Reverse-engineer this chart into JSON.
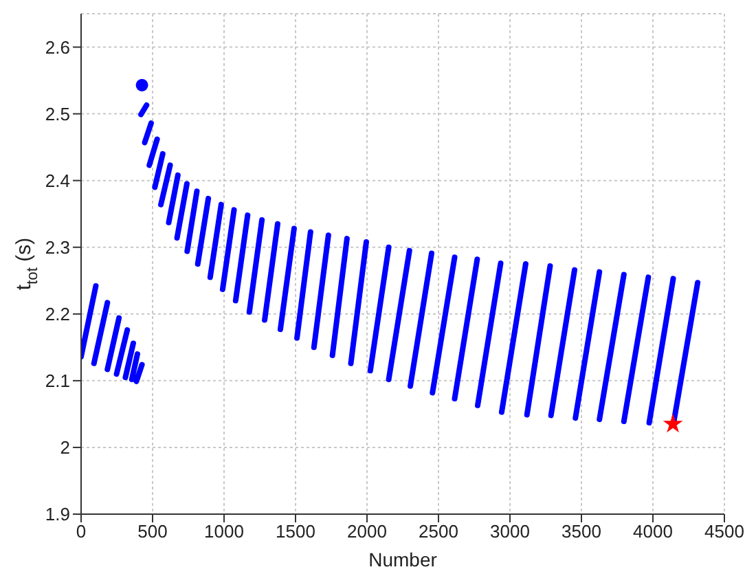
{
  "chart_data": {
    "type": "line",
    "xlabel": "Number",
    "ylabel": "t$_{tot}$ (s)",
    "xlim": [
      0,
      4500
    ],
    "xticks": [
      0,
      500,
      1000,
      1500,
      2000,
      2500,
      3000,
      3500,
      4000,
      4500
    ],
    "ylim": [
      1.9,
      2.65
    ],
    "yticks": [
      1.9,
      2,
      2.1,
      2.2,
      2.3,
      2.4,
      2.5,
      2.6
    ],
    "grid": true,
    "marker": "none",
    "line_style": "solid",
    "series": [
      {
        "color": "#0000ff",
        "x": [
          0,
          103,
          null,
          90,
          184,
          null,
          184,
          265,
          null,
          248,
          323,
          null,
          310,
          365,
          null,
          355,
          394,
          null,
          387,
          426,
          null,
          419,
          458,
          null,
          445,
          490,
          null,
          477,
          532,
          null,
          516,
          571,
          null,
          558,
          623,
          null,
          613,
          677,
          null,
          671,
          740,
          null,
          742,
          810,
          null,
          816,
          890,
          null,
          903,
          980,
          null,
          990,
          1070,
          null,
          1081,
          1165,
          null,
          1177,
          1265,
          null,
          1284,
          1375,
          null,
          1394,
          1490,
          null,
          1510,
          1605,
          null,
          1629,
          1730,
          null,
          1758,
          1860,
          null,
          1887,
          1995,
          null,
          2023,
          2152,
          null,
          2152,
          2297,
          null,
          2303,
          2452,
          null,
          2458,
          2613,
          null,
          2613,
          2771,
          null,
          2774,
          2935,
          null,
          2942,
          3110,
          null,
          3119,
          3281,
          null,
          3287,
          3452,
          null,
          3458,
          3626,
          null,
          3626,
          3797,
          null,
          3797,
          3968,
          null,
          3974,
          4142,
          null,
          4145,
          4313
        ],
        "values": [
          2.136,
          2.242,
          null,
          2.126,
          2.217,
          null,
          2.117,
          2.194,
          null,
          2.11,
          2.176,
          null,
          2.105,
          2.156,
          null,
          2.102,
          2.14,
          null,
          2.099,
          2.124,
          null,
          2.499,
          2.513,
          null,
          2.457,
          2.486,
          null,
          2.423,
          2.462,
          null,
          2.39,
          2.44,
          null,
          2.364,
          2.423,
          null,
          2.337,
          2.408,
          null,
          2.314,
          2.395,
          null,
          2.294,
          2.384,
          null,
          2.275,
          2.373,
          null,
          2.255,
          2.364,
          null,
          2.237,
          2.356,
          null,
          2.22,
          2.348,
          null,
          2.203,
          2.341,
          null,
          2.191,
          2.335,
          null,
          2.177,
          2.328,
          null,
          2.164,
          2.323,
          null,
          2.15,
          2.318,
          null,
          2.138,
          2.313,
          null,
          2.126,
          2.308,
          null,
          2.115,
          2.3,
          null,
          2.102,
          2.295,
          null,
          2.092,
          2.291,
          null,
          2.082,
          2.285,
          null,
          2.073,
          2.282,
          null,
          2.063,
          2.276,
          null,
          2.053,
          2.275,
          null,
          2.049,
          2.272,
          null,
          2.048,
          2.266,
          null,
          2.044,
          2.263,
          null,
          2.042,
          2.259,
          null,
          2.039,
          2.255,
          null,
          2.037,
          2.253,
          null,
          2.037,
          2.247
        ]
      },
      {
        "type": "scatter",
        "marker": "circle",
        "color": "#0000ff",
        "x": [
          426
        ],
        "values": [
          2.543
        ]
      },
      {
        "type": "scatter",
        "marker": "star",
        "color": "#ff0000",
        "x": [
          4140
        ],
        "values": [
          2.035
        ]
      }
    ]
  }
}
